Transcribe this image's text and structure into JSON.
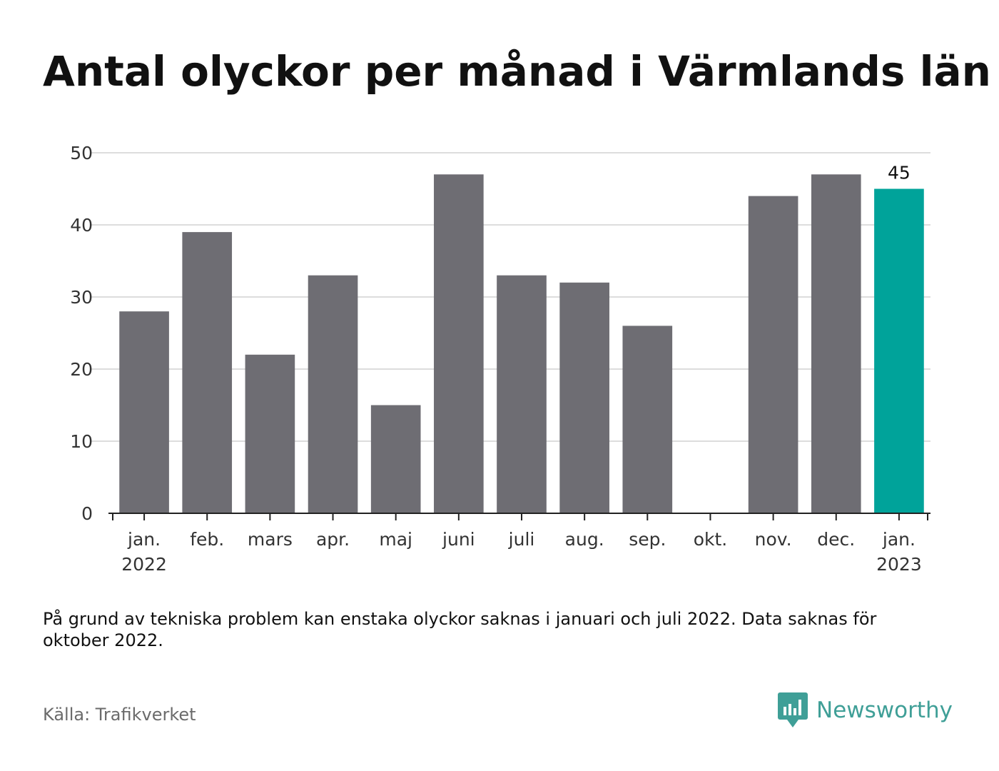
{
  "header": {
    "title": "Antal olyckor per månad i Värmlands län"
  },
  "chart_data": {
    "type": "bar",
    "title": "Antal olyckor per månad i Värmlands län",
    "xlabel": "",
    "ylabel": "",
    "ylim": [
      0,
      50
    ],
    "yticks": [
      "0",
      "10",
      "20",
      "30",
      "40",
      "50"
    ],
    "grid": true,
    "categories": [
      {
        "month": "jan.",
        "year": "2022"
      },
      {
        "month": "feb.",
        "year": ""
      },
      {
        "month": "mars",
        "year": ""
      },
      {
        "month": "apr.",
        "year": ""
      },
      {
        "month": "maj",
        "year": ""
      },
      {
        "month": "juni",
        "year": ""
      },
      {
        "month": "juli",
        "year": ""
      },
      {
        "month": "aug.",
        "year": ""
      },
      {
        "month": "sep.",
        "year": ""
      },
      {
        "month": "okt.",
        "year": ""
      },
      {
        "month": "nov.",
        "year": ""
      },
      {
        "month": "dec.",
        "year": ""
      },
      {
        "month": "jan.",
        "year": "2023"
      }
    ],
    "values": [
      28,
      39,
      22,
      33,
      15,
      47,
      33,
      32,
      26,
      null,
      44,
      47,
      45
    ],
    "highlight_index": 12,
    "highlight_label": "45",
    "colors": {
      "bar": "#6e6d73",
      "highlight": "#00a39a",
      "grid": "#dddddd",
      "axis": "#222222"
    }
  },
  "footer": {
    "note": "På grund av tekniska problem kan enstaka olyckor saknas i januari och juli 2022. Data saknas för oktober 2022.",
    "source": "Källa: Trafikverket",
    "brand": "Newsworthy",
    "brand_icon": "bar-chart-speech-bubble-icon",
    "brand_color": "#3f9f97"
  }
}
